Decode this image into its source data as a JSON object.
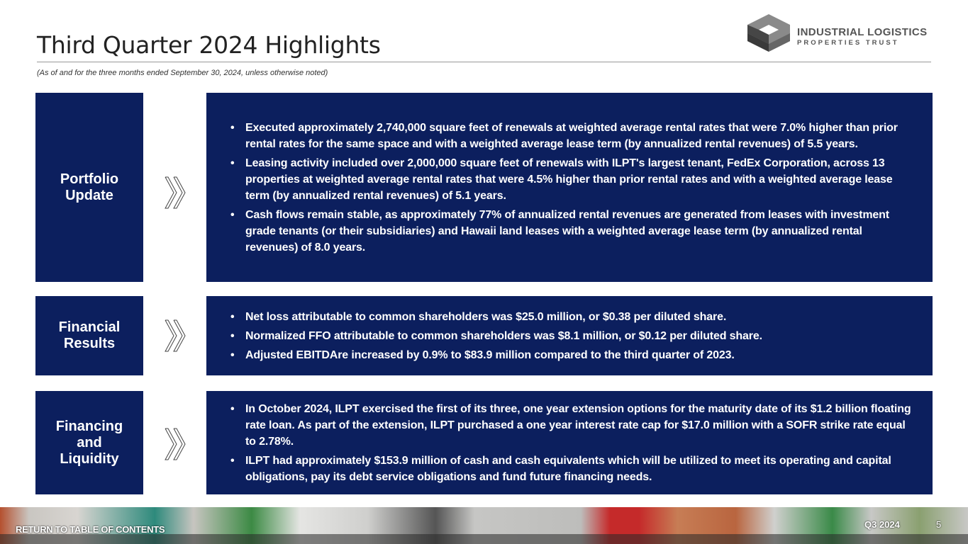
{
  "header": {
    "title": "Third Quarter 2024 Highlights",
    "subtitle": "(As of and for the three months ended September 30, 2024, unless otherwise noted)"
  },
  "logo": {
    "line1": "INDUSTRIAL LOGISTICS",
    "line2": "PROPERTIES TRUST"
  },
  "sections": [
    {
      "label": "Portfolio Update",
      "bullets": [
        "Executed approximately 2,740,000 square feet of renewals at weighted average rental rates that were 7.0% higher than prior rental rates for the same space and with a weighted average lease term (by annualized rental revenues) of 5.5 years.",
        "Leasing activity included over 2,000,000 square feet of renewals with ILPT's largest tenant, FedEx Corporation, across 13 properties at weighted average rental rates that were 4.5% higher than prior rental rates and with a weighted average lease term (by annualized rental revenues) of 5.1 years.",
        "Cash flows remain stable, as approximately 77% of annualized rental revenues are generated from leases with investment grade tenants (or their subsidiaries) and Hawaii land leases with a weighted average lease term (by annualized rental revenues) of 8.0 years."
      ]
    },
    {
      "label": "Financial Results",
      "bullets": [
        "Net loss attributable to common shareholders was $25.0 million, or $0.38 per diluted share.",
        "Normalized FFO attributable to common shareholders was $8.1 million, or $0.12 per diluted share.",
        "Adjusted EBITDAre increased by 0.9% to $83.9 million compared to the third quarter of 2023."
      ]
    },
    {
      "label": "Financing and Liquidity",
      "bullets": [
        "In October 2024, ILPT exercised the first of its three, one year extension options for the maturity date of its $1.2 billion floating rate loan. As part of the extension, ILPT purchased a one year interest rate cap for $17.0 million with a SOFR strike rate equal to 2.78%.",
        "ILPT had approximately $153.9 million of cash and cash equivalents which will be utilized to meet its operating and capital obligations, pay its debt service obligations and fund future financing needs."
      ]
    }
  ],
  "footer": {
    "return_link": "RETURN TO TABLE OF CONTENTS",
    "quarter": "Q3 2024",
    "page": "5"
  },
  "colors": {
    "navy": "#0c1f5e"
  }
}
